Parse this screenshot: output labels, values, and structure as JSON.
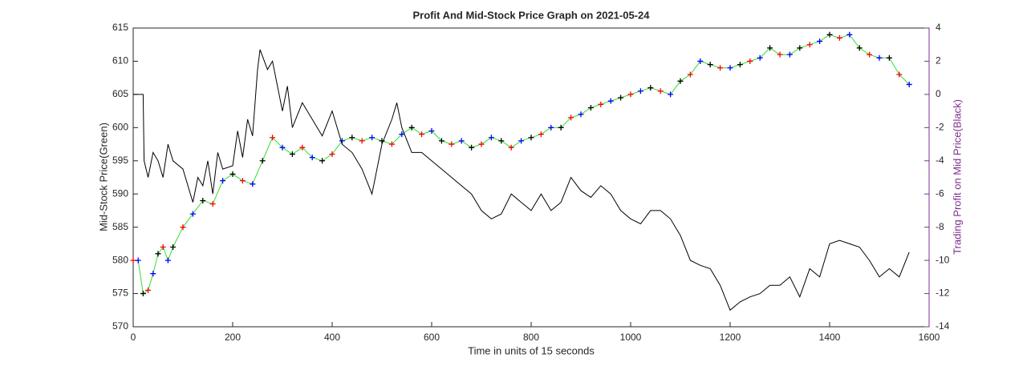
{
  "chart_data": {
    "type": "line",
    "title": "Profit And Mid-Stock Price Graph on 2021-05-24",
    "x_label": "Time in units of 15 seconds",
    "y_label": "Mid-Stock Price(Green)",
    "y2_label": "Trading Profit on Mid Price(Black)",
    "xlim": [
      0,
      1600
    ],
    "xticks": [
      0,
      200,
      400,
      600,
      800,
      1000,
      1200,
      1400,
      1600
    ],
    "ylim": [
      570,
      615
    ],
    "yticks": [
      570,
      575,
      580,
      585,
      590,
      595,
      600,
      605,
      610,
      615
    ],
    "y2lim": [
      -14,
      4
    ],
    "y2ticks": [
      -14,
      -12,
      -10,
      -8,
      -6,
      -4,
      -2,
      0,
      2,
      4
    ],
    "axis_color_y2": "#7e2f8e",
    "series": [
      {
        "color": "#33dd33",
        "marker": "+",
        "marker_colors": [
          "#ff0000",
          "#0000ff",
          "#000000"
        ],
        "x": [
          0,
          10,
          20,
          30,
          40,
          50,
          60,
          70,
          80,
          100,
          120,
          140,
          160,
          180,
          200,
          220,
          240,
          260,
          280,
          300,
          320,
          340,
          360,
          380,
          400,
          420,
          440,
          460,
          480,
          500,
          520,
          540,
          560,
          580,
          600,
          620,
          640,
          660,
          680,
          700,
          720,
          740,
          760,
          780,
          800,
          820,
          840,
          860,
          880,
          900,
          920,
          940,
          960,
          980,
          1000,
          1020,
          1040,
          1060,
          1080,
          1100,
          1120,
          1140,
          1160,
          1180,
          1200,
          1220,
          1240,
          1260,
          1280,
          1300,
          1320,
          1340,
          1360,
          1380,
          1400,
          1420,
          1440,
          1460,
          1480,
          1500,
          1520,
          1540,
          1560
        ],
        "values": [
          580,
          580,
          575,
          575.5,
          578,
          581,
          582,
          580,
          582,
          585,
          587,
          589,
          588.5,
          592,
          593,
          592,
          591.5,
          595,
          598.5,
          597,
          596,
          597,
          595.5,
          595,
          596,
          598,
          598.5,
          598,
          598.5,
          598,
          597.5,
          599,
          600,
          599,
          599.5,
          598,
          597.5,
          598,
          597,
          597.5,
          598.5,
          598,
          597,
          598,
          598.5,
          599,
          600,
          600,
          601.5,
          602,
          603,
          603.5,
          604,
          604.5,
          605,
          605.5,
          606,
          605.5,
          605,
          607,
          608,
          610,
          609.5,
          609,
          609,
          609.5,
          610,
          610.5,
          612,
          611,
          611,
          612,
          612.5,
          613,
          614,
          613.5,
          614,
          612,
          611,
          610.5,
          610.5,
          608,
          606.5
        ]
      },
      {
        "color": "#000000",
        "axis": "y2",
        "x": [
          0,
          20,
          22,
          30,
          40,
          50,
          60,
          70,
          80,
          100,
          110,
          120,
          130,
          140,
          150,
          160,
          170,
          180,
          200,
          210,
          220,
          230,
          240,
          250,
          255,
          270,
          280,
          300,
          310,
          320,
          340,
          360,
          380,
          400,
          420,
          440,
          460,
          480,
          500,
          520,
          530,
          540,
          560,
          580,
          600,
          620,
          640,
          660,
          680,
          700,
          720,
          740,
          760,
          780,
          800,
          820,
          840,
          860,
          880,
          900,
          920,
          940,
          960,
          980,
          1000,
          1020,
          1040,
          1060,
          1080,
          1100,
          1120,
          1140,
          1160,
          1180,
          1200,
          1220,
          1240,
          1260,
          1280,
          1300,
          1320,
          1340,
          1360,
          1380,
          1400,
          1420,
          1440,
          1460,
          1480,
          1500,
          1520,
          1540,
          1560
        ],
        "values": [
          0,
          0,
          -4,
          -5,
          -3.5,
          -4,
          -5,
          -3,
          -4,
          -4.5,
          -5.5,
          -6.5,
          -5,
          -5.5,
          -4,
          -6,
          -3.5,
          -4.5,
          -4.3,
          -2.2,
          -3.8,
          -1.5,
          -2.5,
          1.5,
          2.7,
          1.5,
          2,
          -1,
          0.5,
          -2,
          -0.5,
          -1.5,
          -2.5,
          -1,
          -3,
          -3.5,
          -4.5,
          -6,
          -3,
          -1.5,
          -0.5,
          -2,
          -3.5,
          -3.5,
          -4,
          -4.5,
          -5,
          -5.5,
          -6,
          -7,
          -7.5,
          -7.2,
          -6,
          -6.5,
          -7,
          -6,
          -7,
          -6.5,
          -5,
          -5.8,
          -6.2,
          -5.5,
          -6,
          -7,
          -7.5,
          -7.8,
          -7,
          -7,
          -7.5,
          -8.5,
          -10,
          -10.3,
          -10.5,
          -11.5,
          -13,
          -12.5,
          -12.2,
          -12,
          -11.5,
          -11.5,
          -11,
          -12.2,
          -10.5,
          -11,
          -9,
          -8.8,
          -9,
          -9.2,
          -10,
          -11,
          -10.5,
          -11,
          -9.5
        ]
      }
    ]
  }
}
